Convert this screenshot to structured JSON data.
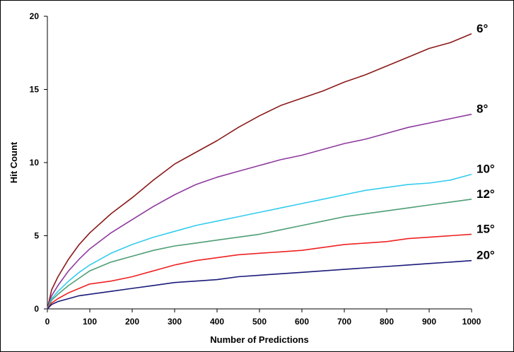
{
  "chart_data": {
    "type": "line",
    "title": "",
    "xlabel": "Number of Predictions",
    "ylabel": "Hit Count",
    "xlim": [
      0,
      1000
    ],
    "ylim": [
      0,
      20
    ],
    "xticks": [
      "0",
      "100",
      "200",
      "300",
      "400",
      "500",
      "600",
      "700",
      "800",
      "900",
      "1000"
    ],
    "yticks": [
      "0",
      "5",
      "10",
      "15",
      "20"
    ],
    "grid": false,
    "legend": "labels at line ends (right)",
    "x": [
      0,
      10,
      25,
      50,
      75,
      100,
      150,
      200,
      250,
      300,
      350,
      400,
      450,
      500,
      550,
      600,
      650,
      700,
      750,
      800,
      850,
      900,
      950,
      1000
    ],
    "series": [
      {
        "name": "6°",
        "color": "#8B1A1A",
        "values": [
          0,
          1.3,
          2.2,
          3.4,
          4.4,
          5.2,
          6.5,
          7.6,
          8.8,
          9.9,
          10.7,
          11.5,
          12.4,
          13.2,
          13.9,
          14.4,
          14.9,
          15.5,
          16.0,
          16.6,
          17.2,
          17.8,
          18.2,
          18.8
        ]
      },
      {
        "name": "8°",
        "color": "#8E3A9E",
        "values": [
          0,
          0.9,
          1.6,
          2.6,
          3.4,
          4.1,
          5.2,
          6.1,
          7.0,
          7.8,
          8.5,
          9.0,
          9.4,
          9.8,
          10.2,
          10.5,
          10.9,
          11.3,
          11.6,
          12.0,
          12.4,
          12.7,
          13.0,
          13.3
        ]
      },
      {
        "name": "10°",
        "color": "#33CCEE",
        "values": [
          0,
          0.7,
          1.2,
          1.9,
          2.5,
          3.0,
          3.8,
          4.4,
          4.9,
          5.3,
          5.7,
          6.0,
          6.3,
          6.6,
          6.9,
          7.2,
          7.5,
          7.8,
          8.1,
          8.3,
          8.5,
          8.6,
          8.8,
          9.2
        ]
      },
      {
        "name": "12°",
        "color": "#4E9E76",
        "values": [
          0,
          0.6,
          1.0,
          1.6,
          2.1,
          2.6,
          3.2,
          3.6,
          4.0,
          4.3,
          4.5,
          4.7,
          4.9,
          5.1,
          5.4,
          5.7,
          6.0,
          6.3,
          6.5,
          6.7,
          6.9,
          7.1,
          7.3,
          7.5
        ]
      },
      {
        "name": "15°",
        "color": "#EE2222",
        "values": [
          0,
          0.4,
          0.7,
          1.1,
          1.4,
          1.7,
          1.9,
          2.2,
          2.6,
          3.0,
          3.3,
          3.5,
          3.7,
          3.8,
          3.9,
          4.0,
          4.2,
          4.4,
          4.5,
          4.6,
          4.8,
          4.9,
          5.0,
          5.1
        ]
      },
      {
        "name": "20°",
        "color": "#1A1A7A",
        "values": [
          0,
          0.3,
          0.5,
          0.7,
          0.9,
          1.0,
          1.2,
          1.4,
          1.6,
          1.8,
          1.9,
          2.0,
          2.2,
          2.3,
          2.4,
          2.5,
          2.6,
          2.7,
          2.8,
          2.9,
          3.0,
          3.1,
          3.2,
          3.3
        ]
      }
    ]
  }
}
